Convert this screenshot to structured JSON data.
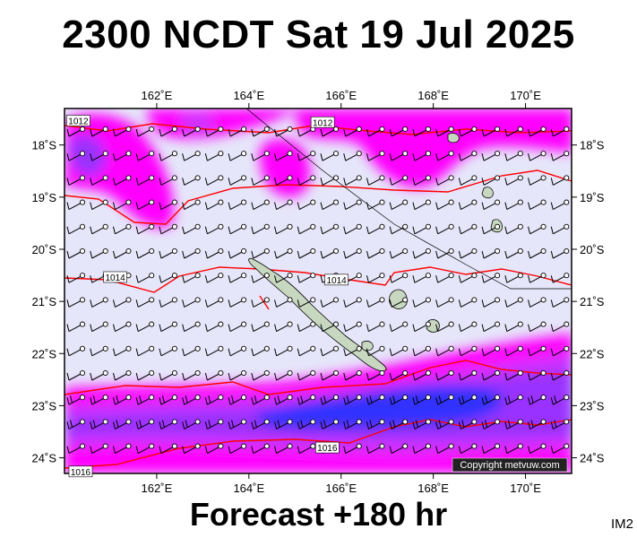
{
  "header": {
    "title": "2300 NCDT Sat 19 Jul 2025"
  },
  "footer": {
    "forecast": "Forecast +180 hr",
    "tag": "IM2"
  },
  "map": {
    "lon_range": [
      160.0,
      171.0
    ],
    "lat_range": [
      -24.3,
      -17.3
    ],
    "lon_ticks": [
      {
        "value": 162,
        "label": "162˚E"
      },
      {
        "value": 164,
        "label": "164˚E"
      },
      {
        "value": 166,
        "label": "166˚E"
      },
      {
        "value": 168,
        "label": "168˚E"
      },
      {
        "value": 170,
        "label": "170˚E"
      }
    ],
    "lat_ticks": [
      {
        "value": -18,
        "label": "18˚S"
      },
      {
        "value": -19,
        "label": "19˚S"
      },
      {
        "value": -20,
        "label": "20˚S"
      },
      {
        "value": -21,
        "label": "21˚S"
      },
      {
        "value": -22,
        "label": "22˚S"
      },
      {
        "value": -23,
        "label": "23˚S"
      },
      {
        "value": -24,
        "label": "24˚S"
      }
    ],
    "isobar_labels": [
      {
        "text": "1012",
        "lon": 160.3,
        "lat": -17.55
      },
      {
        "text": "1012",
        "lon": 165.6,
        "lat": -17.58
      },
      {
        "text": "1014",
        "lon": 161.1,
        "lat": -20.55
      },
      {
        "text": "1014",
        "lon": 165.9,
        "lat": -20.6
      },
      {
        "text": "1016",
        "lon": 165.7,
        "lat": -23.82
      },
      {
        "text": "1016",
        "lon": 160.35,
        "lat": -24.28
      }
    ],
    "copyright": "Copyright metvuw.com",
    "colors": {
      "background": "#e6e6fa",
      "magenta": "#ff00ff",
      "violet": "#cc33ff",
      "purple": "#9933ff",
      "blue": "#3333ff",
      "isobar": "#ff0000",
      "land": "#c8d8c0"
    }
  }
}
